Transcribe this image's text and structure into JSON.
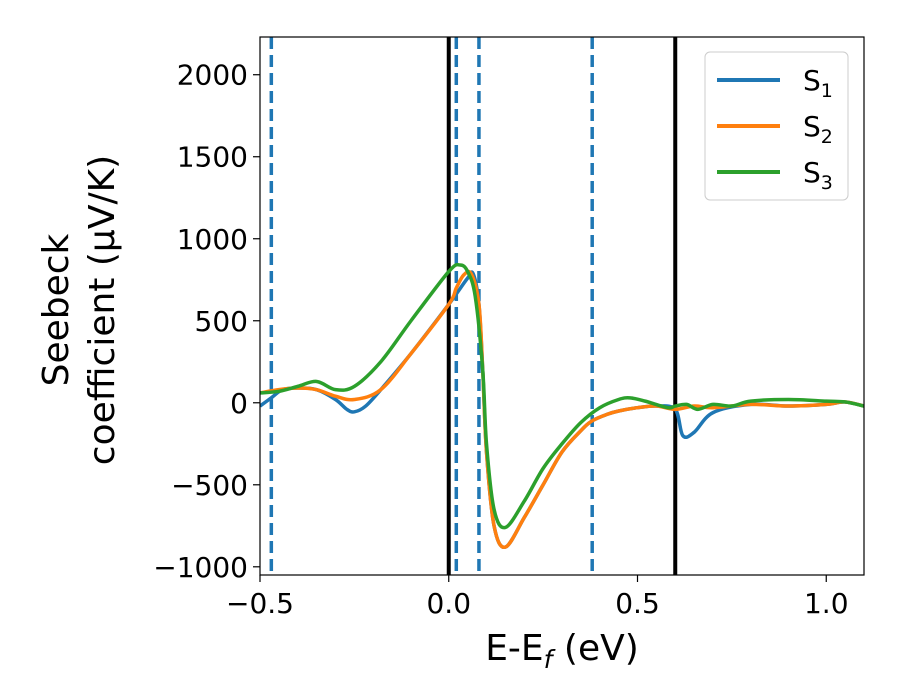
{
  "chart_data": {
    "type": "line",
    "xlabel_main": "E-E",
    "xlabel_sub": "f",
    "xlabel_tail": " (eV)",
    "ylabel_line1": "Seebeck",
    "ylabel_line2": "coefficient  (μV/K)",
    "xlim": [
      -0.5,
      1.1
    ],
    "ylim": [
      -1050,
      2230
    ],
    "xticks": [
      -0.5,
      0.0,
      0.5,
      1.0
    ],
    "xtick_labels": [
      "−0.5",
      "0.0",
      "0.5",
      "1.0"
    ],
    "yticks": [
      -1000,
      -500,
      0,
      500,
      1000,
      1500,
      2000
    ],
    "ytick_labels": [
      "−1000",
      "−500",
      "0",
      "500",
      "1000",
      "1500",
      "2000"
    ],
    "legend_position": "top-right",
    "vlines_solid": [
      0.0,
      0.6
    ],
    "vlines_dashed": [
      -0.47,
      0.02,
      0.08,
      0.38
    ],
    "vline_solid_color": "#000000",
    "vline_dashed_color": "#1f77b4",
    "series": [
      {
        "name": "S",
        "sub": "1",
        "color": "#1f77b4",
        "x": [
          -0.5,
          -0.47,
          -0.44,
          -0.4,
          -0.35,
          -0.3,
          -0.27,
          -0.25,
          -0.22,
          -0.18,
          -0.1,
          0.0,
          0.05,
          0.065,
          0.08,
          0.09,
          0.1,
          0.12,
          0.15,
          0.2,
          0.25,
          0.3,
          0.35,
          0.38,
          0.42,
          0.45,
          0.5,
          0.55,
          0.6,
          0.62,
          0.65,
          0.7,
          0.8,
          0.9,
          1.0,
          1.05,
          1.1
        ],
        "y": [
          -20,
          30,
          80,
          90,
          80,
          20,
          -40,
          -55,
          -20,
          80,
          300,
          600,
          760,
          785,
          600,
          200,
          -300,
          -750,
          -880,
          -700,
          -500,
          -300,
          -170,
          -110,
          -70,
          -50,
          -30,
          -20,
          -40,
          -200,
          -180,
          -60,
          -10,
          -20,
          -10,
          5,
          -20
        ]
      },
      {
        "name": "S",
        "sub": "2",
        "color": "#ff7f0e",
        "x": [
          -0.5,
          -0.45,
          -0.4,
          -0.35,
          -0.3,
          -0.25,
          -0.18,
          -0.1,
          0.0,
          0.02,
          0.04,
          0.06,
          0.08,
          0.09,
          0.1,
          0.12,
          0.15,
          0.2,
          0.25,
          0.3,
          0.35,
          0.38,
          0.42,
          0.45,
          0.5,
          0.55,
          0.6,
          0.65,
          0.7,
          0.8,
          0.9,
          1.0,
          1.05,
          1.1
        ],
        "y": [
          60,
          80,
          90,
          80,
          40,
          20,
          80,
          300,
          600,
          700,
          780,
          785,
          600,
          200,
          -300,
          -750,
          -880,
          -700,
          -500,
          -300,
          -170,
          -110,
          -70,
          -50,
          -30,
          -20,
          -40,
          -20,
          -30,
          -10,
          -20,
          -10,
          5,
          -20
        ]
      },
      {
        "name": "S",
        "sub": "3",
        "color": "#2ca02c",
        "x": [
          -0.5,
          -0.45,
          -0.4,
          -0.35,
          -0.3,
          -0.25,
          -0.18,
          -0.1,
          0.0,
          0.03,
          0.05,
          0.07,
          0.09,
          0.1,
          0.12,
          0.15,
          0.2,
          0.25,
          0.3,
          0.35,
          0.4,
          0.45,
          0.48,
          0.52,
          0.58,
          0.6,
          0.63,
          0.66,
          0.7,
          0.75,
          0.8,
          0.9,
          1.0,
          1.05,
          1.1
        ],
        "y": [
          60,
          70,
          100,
          130,
          80,
          100,
          250,
          500,
          800,
          840,
          800,
          650,
          200,
          -250,
          -650,
          -760,
          -600,
          -400,
          -250,
          -120,
          -30,
          20,
          30,
          10,
          -30,
          -20,
          -10,
          -40,
          -10,
          -20,
          10,
          20,
          10,
          5,
          -20
        ]
      }
    ]
  }
}
